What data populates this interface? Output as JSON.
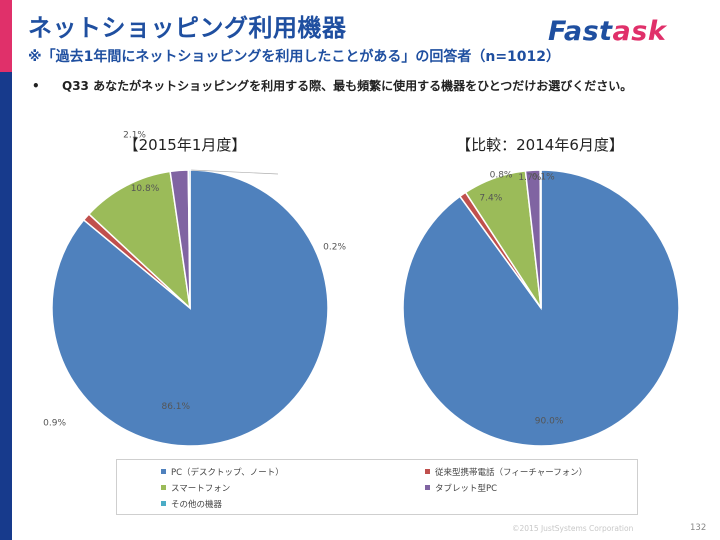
{
  "slide": {
    "title": "ネットショッピング利用機器",
    "subtitle": "※「過去1年間にネットショッピングを利用したことがある」の回答者（n=1012）",
    "logo_part1": "Fast",
    "logo_part2": "ask",
    "bullet_marker": "•",
    "question": "Q33 あなたがネットショッピングを利用する際、最も頻繁に使用する機器をひとつだけお選びください。",
    "copyright": "©2015 JustSystems Corporation",
    "page_number": "132",
    "colors": {
      "title": "#1f4fa0",
      "accent": "#e0306a",
      "sidebar": "#173a8c"
    }
  },
  "chart_data": [
    {
      "type": "pie",
      "title": "【2015年1月度】",
      "categories": [
        "PC（デスクトップ、ノート）",
        "従来型携帯電話（フィーチャーフォン）",
        "スマートフォン",
        "タブレット型PC",
        "その他の機器"
      ],
      "values": [
        86.1,
        0.9,
        10.8,
        2.1,
        0.2
      ],
      "labels": [
        "86.1%",
        "0.9%",
        "10.8%",
        "2.1%",
        "0.2%"
      ],
      "colors": [
        "#4f81bd",
        "#c0504d",
        "#9bbb59",
        "#8064a2",
        "#4bacc6"
      ],
      "legend": "bottom"
    },
    {
      "type": "pie",
      "title": "【比較：2014年6月度】",
      "categories": [
        "PC（デスクトップ、ノート）",
        "従来型携帯電話（フィーチャーフォン）",
        "スマートフォン",
        "タブレット型PC",
        "その他の機器"
      ],
      "values": [
        90.0,
        0.8,
        7.4,
        1.7,
        0.1
      ],
      "labels": [
        "90.0%",
        "0.8%",
        "7.4%",
        "1.7%",
        "0.1%"
      ],
      "colors": [
        "#4f81bd",
        "#c0504d",
        "#9bbb59",
        "#8064a2",
        "#4bacc6"
      ],
      "legend": "bottom"
    }
  ]
}
